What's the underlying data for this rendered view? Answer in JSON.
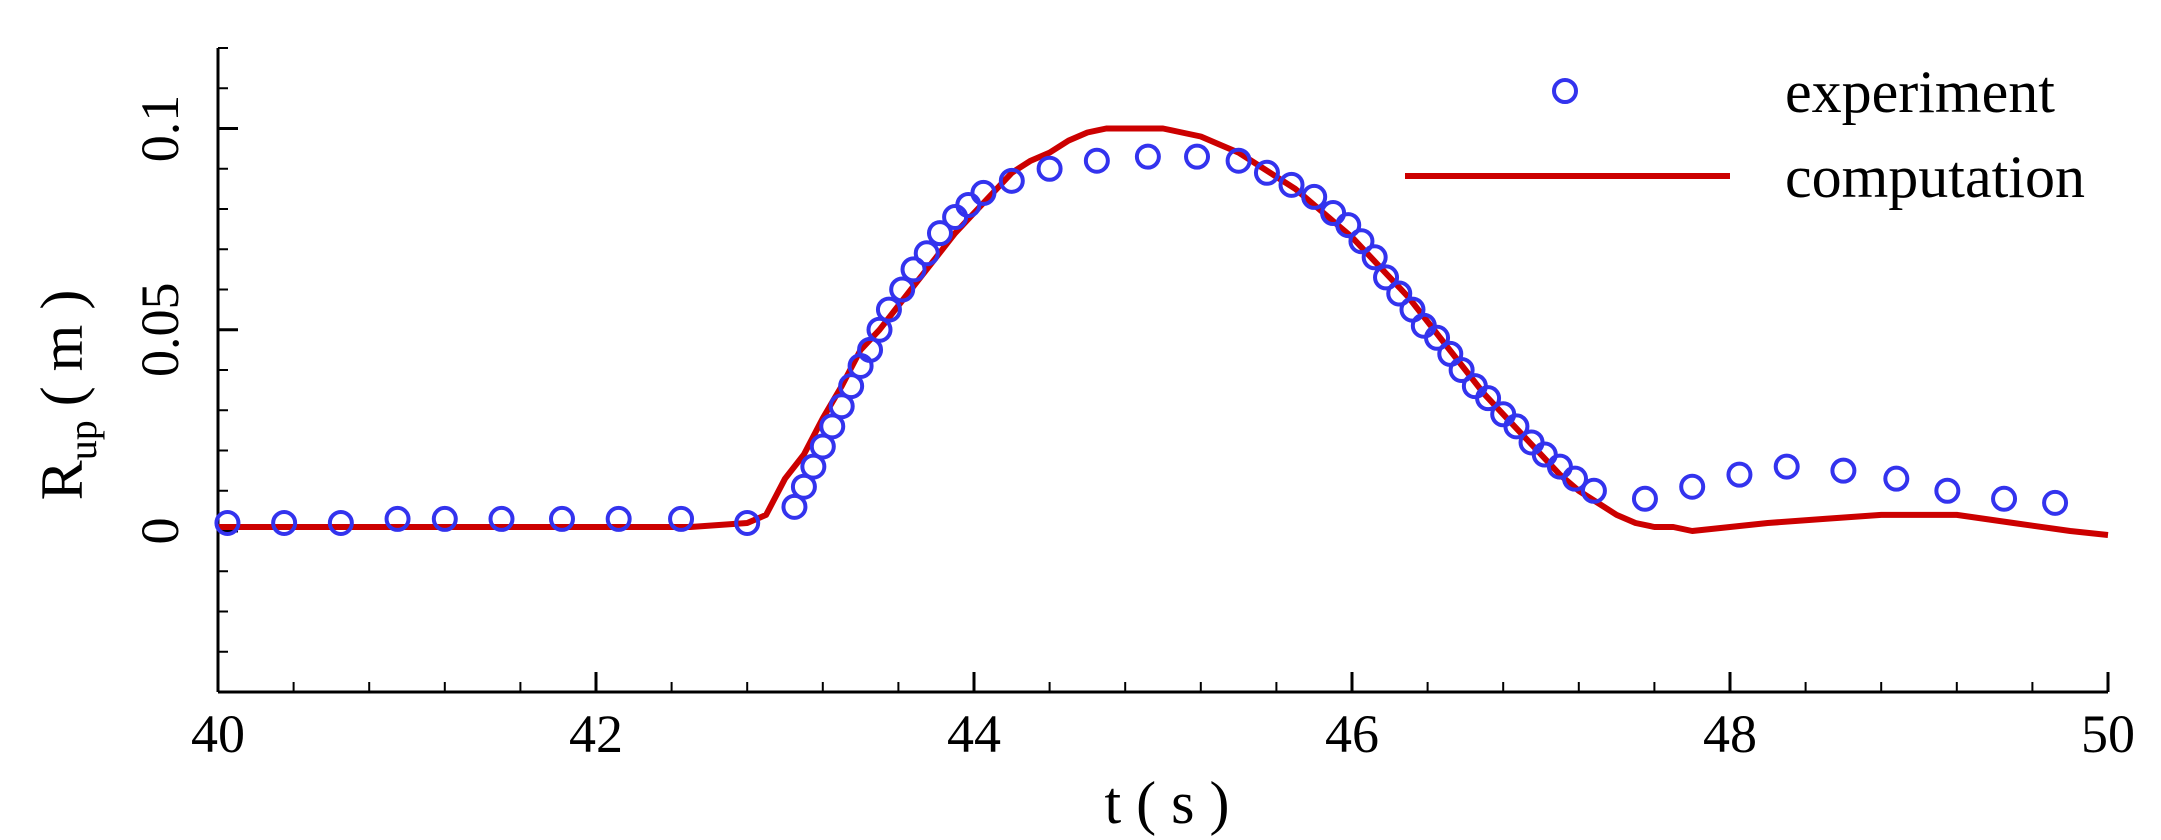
{
  "chart_data": {
    "type": "line",
    "title": "",
    "xlabel": "t ( s )",
    "ylabel": {
      "main": "R",
      "sub": "up",
      "unit": "( m )"
    },
    "xlim": [
      40,
      50
    ],
    "ylim": [
      -0.04,
      0.12
    ],
    "xticks": [
      40,
      42,
      44,
      46,
      48,
      50
    ],
    "xtick_labels": [
      "40",
      "42",
      "44",
      "46",
      "48",
      "50"
    ],
    "yticks": [
      0,
      0.05,
      0.1
    ],
    "ytick_labels": [
      "0",
      "0.05",
      "0.1"
    ],
    "grid": false,
    "legend_position": "top-right",
    "series": [
      {
        "name": "experiment",
        "kind": "scatter",
        "marker": "open-circle",
        "color": "#3333ee",
        "x": [
          40.05,
          40.35,
          40.65,
          40.95,
          41.2,
          41.5,
          41.82,
          42.12,
          42.45,
          42.8,
          43.05,
          43.1,
          43.15,
          43.2,
          43.25,
          43.3,
          43.35,
          43.4,
          43.45,
          43.5,
          43.55,
          43.62,
          43.68,
          43.75,
          43.82,
          43.9,
          43.97,
          44.05,
          44.2,
          44.4,
          44.65,
          44.92,
          45.18,
          45.4,
          45.55,
          45.68,
          45.8,
          45.9,
          45.98,
          46.05,
          46.12,
          46.18,
          46.25,
          46.32,
          46.38,
          46.45,
          46.52,
          46.58,
          46.65,
          46.72,
          46.8,
          46.87,
          46.95,
          47.02,
          47.1,
          47.18,
          47.28,
          47.55,
          47.8,
          48.05,
          48.3,
          48.6,
          48.88,
          49.15,
          49.45,
          49.72
        ],
        "y": [
          0.002,
          0.002,
          0.002,
          0.003,
          0.003,
          0.003,
          0.003,
          0.003,
          0.003,
          0.002,
          0.006,
          0.011,
          0.016,
          0.021,
          0.026,
          0.031,
          0.036,
          0.041,
          0.045,
          0.05,
          0.055,
          0.06,
          0.065,
          0.069,
          0.074,
          0.078,
          0.081,
          0.084,
          0.087,
          0.09,
          0.092,
          0.093,
          0.093,
          0.092,
          0.089,
          0.086,
          0.083,
          0.079,
          0.076,
          0.072,
          0.068,
          0.063,
          0.059,
          0.055,
          0.051,
          0.048,
          0.044,
          0.04,
          0.036,
          0.033,
          0.029,
          0.026,
          0.022,
          0.019,
          0.016,
          0.013,
          0.01,
          0.008,
          0.011,
          0.014,
          0.016,
          0.015,
          0.013,
          0.01,
          0.008,
          0.007
        ]
      },
      {
        "name": "computation",
        "kind": "line",
        "color": "#cc0000",
        "x": [
          40.0,
          40.5,
          41.0,
          41.5,
          42.0,
          42.5,
          42.8,
          42.9,
          43.0,
          43.1,
          43.2,
          43.3,
          43.4,
          43.5,
          43.6,
          43.7,
          43.8,
          43.9,
          44.0,
          44.1,
          44.2,
          44.3,
          44.4,
          44.5,
          44.6,
          44.7,
          44.8,
          44.9,
          45.0,
          45.1,
          45.2,
          45.3,
          45.4,
          45.5,
          45.6,
          45.7,
          45.8,
          45.9,
          46.0,
          46.1,
          46.2,
          46.3,
          46.4,
          46.5,
          46.6,
          46.7,
          46.8,
          46.9,
          47.0,
          47.1,
          47.2,
          47.3,
          47.4,
          47.5,
          47.6,
          47.7,
          47.8,
          48.0,
          48.2,
          48.5,
          48.8,
          49.0,
          49.2,
          49.5,
          49.8,
          50.0
        ],
        "y": [
          0.001,
          0.001,
          0.001,
          0.001,
          0.001,
          0.001,
          0.002,
          0.004,
          0.013,
          0.019,
          0.028,
          0.036,
          0.045,
          0.05,
          0.056,
          0.062,
          0.068,
          0.074,
          0.079,
          0.084,
          0.089,
          0.092,
          0.094,
          0.097,
          0.099,
          0.1,
          0.1,
          0.1,
          0.1,
          0.099,
          0.098,
          0.096,
          0.094,
          0.091,
          0.088,
          0.085,
          0.081,
          0.077,
          0.073,
          0.068,
          0.063,
          0.058,
          0.052,
          0.046,
          0.04,
          0.034,
          0.029,
          0.024,
          0.019,
          0.014,
          0.01,
          0.007,
          0.004,
          0.002,
          0.001,
          0.001,
          0.0,
          0.001,
          0.002,
          0.003,
          0.004,
          0.004,
          0.004,
          0.002,
          0.0,
          -0.001
        ]
      }
    ]
  }
}
